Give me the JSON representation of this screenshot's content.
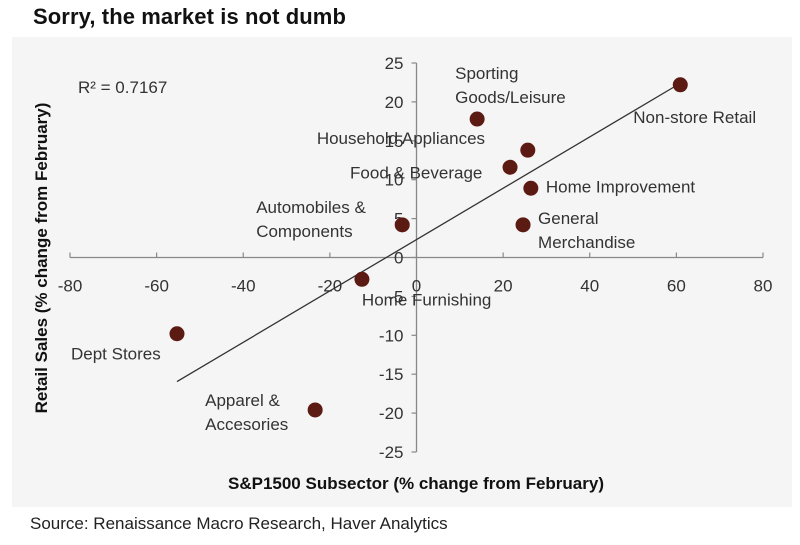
{
  "title": "Sorry, the market is not dumb",
  "source": "Source: Renaissance Macro Research, Haver Analytics",
  "colors": {
    "panel": "#f5f5f5",
    "point": "#5b1a12",
    "axis": "#888888",
    "trendline": "#333333"
  },
  "chart_data": {
    "type": "scatter",
    "title": "Sorry, the market is not dumb",
    "xlabel": "S&P1500 Subsector (% change from February)",
    "ylabel": "Retail Sales (% change from February)",
    "xlim": [
      -80,
      80
    ],
    "ylim": [
      -25,
      25
    ],
    "xticks": [
      -80,
      -60,
      -40,
      -20,
      0,
      20,
      40,
      60,
      80
    ],
    "yticks": [
      -25,
      -20,
      -15,
      -10,
      -5,
      0,
      5,
      10,
      15,
      20,
      25
    ],
    "grid": false,
    "annotation": "R² = 0.7167",
    "trendline": {
      "type": "linear",
      "slope": 0.33,
      "intercept": 2.3,
      "x_range": [
        -55.3,
        60.9
      ],
      "r_squared": 0.7167
    },
    "points": [
      {
        "label": "Non-store Retail",
        "label_lines": [
          "Non-store Retail"
        ],
        "x": 60.9,
        "y": 22.2
      },
      {
        "label": "Sporting Goods/Leisure",
        "label_lines": [
          "Sporting",
          "Goods/Leisure"
        ],
        "x": 14.0,
        "y": 17.8
      },
      {
        "label": "Household Appliances",
        "label_lines": [
          "Household Appliances"
        ],
        "x": 25.7,
        "y": 13.8
      },
      {
        "label": "Food & Beverage",
        "label_lines": [
          "Food & Beverage"
        ],
        "x": 21.6,
        "y": 11.6
      },
      {
        "label": "Home Improvement",
        "label_lines": [
          "Home Improvement"
        ],
        "x": 26.4,
        "y": 8.9
      },
      {
        "label": "General Merchandise",
        "label_lines": [
          "General",
          "Merchandise"
        ],
        "x": 24.6,
        "y": 4.2
      },
      {
        "label": "Automobiles & Components",
        "label_lines": [
          "Automobiles &",
          "Components"
        ],
        "x": -3.3,
        "y": 4.2
      },
      {
        "label": "Home Furnishing",
        "label_lines": [
          "Home Furnishing"
        ],
        "x": -12.6,
        "y": -2.8
      },
      {
        "label": "Dept Stores",
        "label_lines": [
          "Dept Stores"
        ],
        "x": -55.3,
        "y": -9.8
      },
      {
        "label": "Apparel & Accesories",
        "label_lines": [
          "Apparel &",
          "Accesories"
        ],
        "x": -23.4,
        "y": -19.6
      }
    ]
  }
}
